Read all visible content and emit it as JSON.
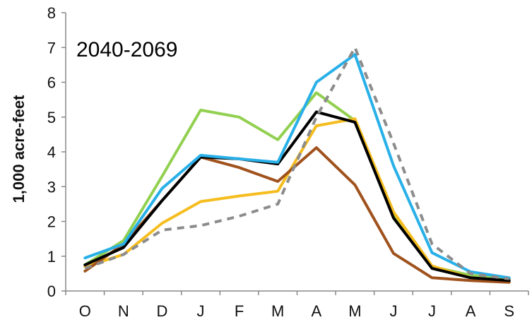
{
  "chart_data": {
    "type": "line",
    "title": "",
    "annotation": "2040-2069",
    "xlabel": "",
    "ylabel": "1,000 acre-feet",
    "ylim": [
      0,
      8
    ],
    "yticks": [
      0,
      1,
      2,
      3,
      4,
      5,
      6,
      7,
      8
    ],
    "grid": false,
    "legend": "none",
    "categories": [
      "O",
      "N",
      "D",
      "J",
      "F",
      "M",
      "A",
      "M",
      "J",
      "J",
      "A",
      "S"
    ],
    "series": [
      {
        "color": "#92d050",
        "dash": "solid",
        "values": [
          0.75,
          1.45,
          3.3,
          5.2,
          5.0,
          4.35,
          5.7,
          4.9,
          2.2,
          0.7,
          0.45,
          0.35
        ]
      },
      {
        "color": "#f5bd1f",
        "dash": "solid",
        "values": [
          0.7,
          1.05,
          1.95,
          2.57,
          2.73,
          2.87,
          4.75,
          4.95,
          2.27,
          0.72,
          0.38,
          0.3
        ]
      },
      {
        "color": "#a0521d",
        "dash": "solid",
        "values": [
          0.57,
          1.35,
          2.6,
          3.85,
          3.55,
          3.15,
          4.12,
          3.05,
          1.08,
          0.38,
          0.3,
          0.25
        ]
      },
      {
        "color": "#000000",
        "dash": "solid",
        "values": [
          0.75,
          1.25,
          2.6,
          3.85,
          3.8,
          3.65,
          5.15,
          4.85,
          2.1,
          0.65,
          0.38,
          0.3
        ]
      },
      {
        "color": "#29b0e8",
        "dash": "solid",
        "values": [
          0.95,
          1.35,
          2.95,
          3.9,
          3.8,
          3.7,
          6.0,
          6.8,
          3.6,
          1.1,
          0.55,
          0.38
        ]
      },
      {
        "color": "#8c8c8c",
        "dash": "dashed",
        "values": [
          0.65,
          1.05,
          1.75,
          1.88,
          2.15,
          2.5,
          5.0,
          7.0,
          4.25,
          1.35,
          0.5,
          0.35
        ]
      }
    ]
  }
}
